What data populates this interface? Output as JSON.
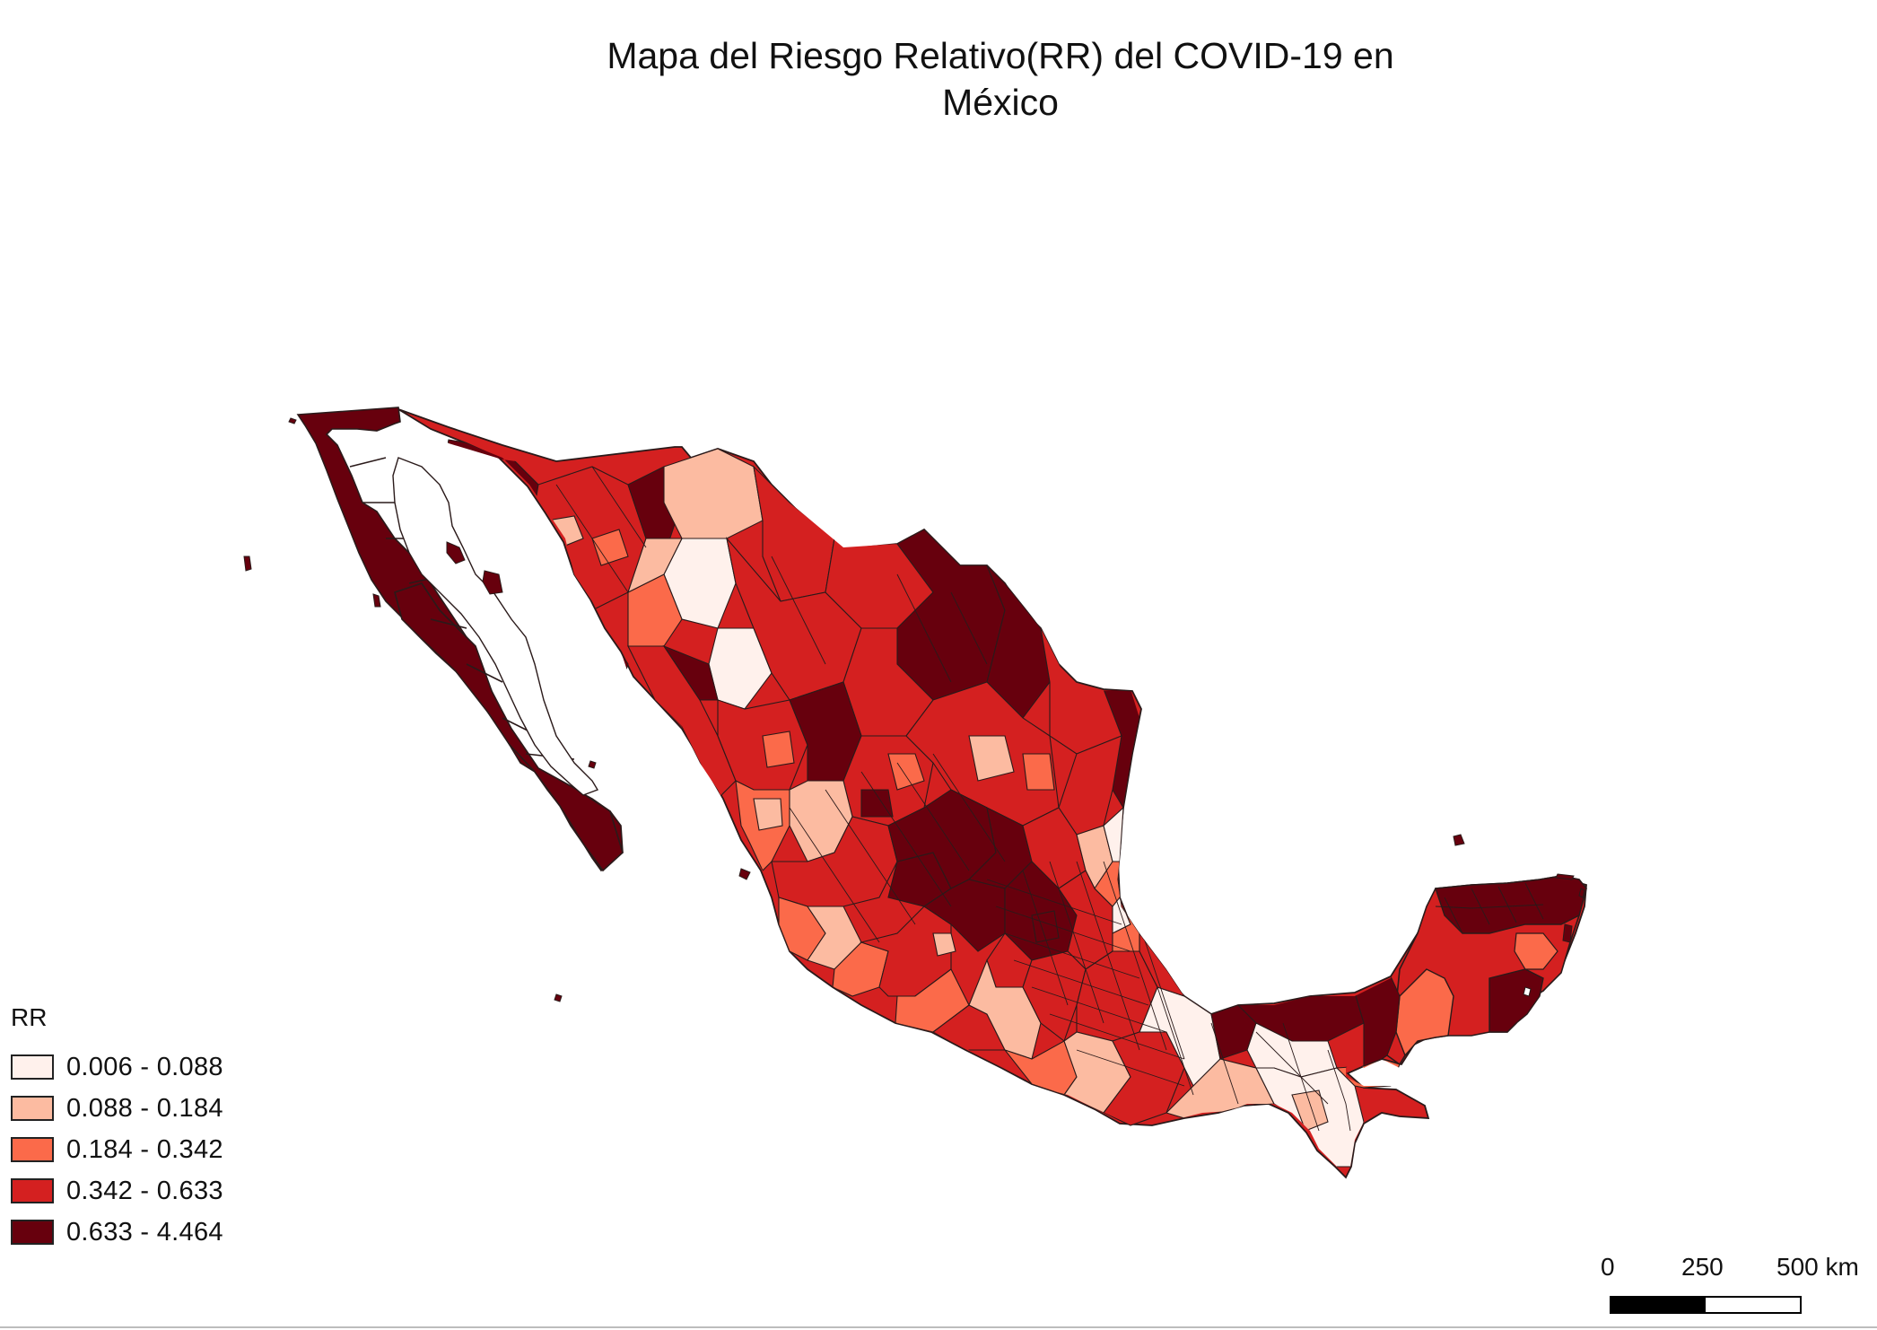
{
  "map": {
    "title_line1": "Mapa del Riesgo Relativo(RR) del COVID-19 en",
    "title_line2": "México",
    "subject": "Mexico municipalities choropleth",
    "boundary_color": "#2a1a1a"
  },
  "legend": {
    "title": "RR",
    "items": [
      {
        "label": "0.006 - 0.088",
        "color": "#fff1ec"
      },
      {
        "label": "0.088 - 0.184",
        "color": "#fcbba1"
      },
      {
        "label": "0.184 - 0.342",
        "color": "#fb6a4a"
      },
      {
        "label": "0.342 - 0.633",
        "color": "#d42020"
      },
      {
        "label": "0.633 - 4.464",
        "color": "#67000d"
      }
    ]
  },
  "scale": {
    "labels": [
      "0",
      "250",
      "500 km"
    ]
  }
}
